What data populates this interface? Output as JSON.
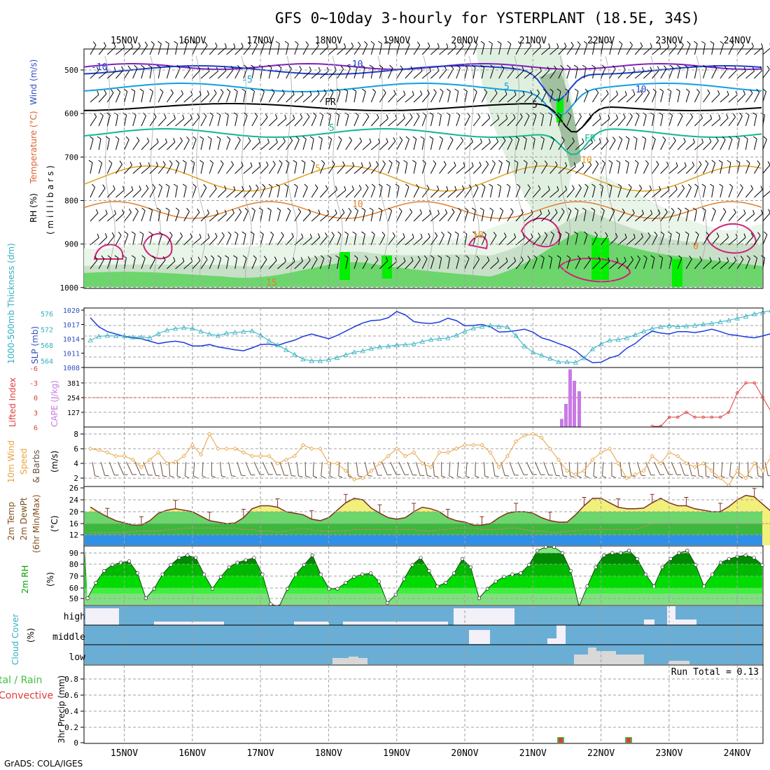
{
  "title": "GFS 0~10day 3-hourly for YSTERPLANT (18.5E, 34S)",
  "footer": "GrADS: COLA/IGES",
  "dates": [
    "15NOV",
    "16NOV",
    "17NOV",
    "18NOV",
    "19NOV",
    "20NOV",
    "21NOV",
    "22NOV",
    "23NOV",
    "24NOV"
  ],
  "colors": {
    "grid": "#a0a0a0",
    "wind_blue": "#1e3cdc",
    "cape": "#c87ae6",
    "li": "#e03c3c",
    "wind10": "#e8a040",
    "barb": "#6a5040",
    "rh_light": "#a8f080",
    "rh_mid": "#3cd23c",
    "rh_dark": "#00a000",
    "cloud": "#6aaed6",
    "temp_yellow": "#f0f07a",
    "dew_blue": "#3090e8"
  },
  "panels": {
    "upper": {
      "label_rh": "RH (%)",
      "label_temp": "Temperature (°C)",
      "label_wind": "Wind (m/s)",
      "label_mb": "( m i l l i b a r s )",
      "yticks": [
        "500",
        "600",
        "700",
        "800",
        "900",
        "1000"
      ],
      "contour_labels": [
        "-10",
        "-10",
        "-5",
        "5",
        "-10",
        "5",
        "FR",
        "FR",
        "5",
        "5",
        "10",
        "10",
        "10",
        "15",
        "0",
        "-5",
        "15",
        "0",
        "10",
        "10",
        "50",
        "50",
        "10",
        "50",
        "10",
        "10",
        "50",
        "50",
        "10",
        "10"
      ]
    },
    "slp": {
      "label_thk": "1000-500mb Thickness (dm)",
      "label_slp": "SLP (mb)",
      "left_ticks": [
        "576",
        "572",
        "568",
        "564"
      ],
      "right_ticks": [
        "1020",
        "1017",
        "1014",
        "1011",
        "1008"
      ]
    },
    "cape": {
      "label_li": "Lifted Index",
      "label_cape": "CAPE (J/kg)",
      "left_ticks": [
        "-6",
        "-3",
        "0",
        "3",
        "6"
      ],
      "right_ticks": [
        "381",
        "254",
        "127"
      ]
    },
    "wind10": {
      "label_a": "10m Wind",
      "label_b": "Speed",
      "label_c": "& Barbs",
      "label_unit": "(m/s)",
      "yticks": [
        "8",
        "6",
        "4",
        "2"
      ]
    },
    "temp2m": {
      "label_a": "2m Temp",
      "label_b": "2m DewPt",
      "label_c": "(6hr Min/Max)",
      "label_unit": "(°C)",
      "yticks": [
        "26",
        "24",
        "20",
        "16",
        "12"
      ]
    },
    "rh2m": {
      "label": "2m RH",
      "label_unit": "(%)",
      "yticks": [
        "90",
        "80",
        "70",
        "60",
        "50"
      ]
    },
    "cloud": {
      "label": "Cloud Cover",
      "label_unit": "(%)",
      "levels": [
        "high",
        "middle",
        "low"
      ]
    },
    "precip": {
      "label_a": "tal / Rain",
      "label_b": "Convective",
      "label_axis": "3hr Precip (mm)",
      "yticks": [
        "0.8",
        "0.6",
        "0.4",
        "0.2",
        "0"
      ],
      "run_total": "Run Total = 0.13"
    }
  },
  "chart_data": [
    {
      "type": "line",
      "title": "SLP (mb) / 1000-500mb Thickness (dm)",
      "x_start": "14NOV 12Z",
      "x_step_hours": 3,
      "series": [
        {
          "name": "SLP (mb)",
          "values": [
            1018.4,
            1016.5,
            1015.5,
            1015,
            1014.5,
            1014.2,
            1014,
            1013.5,
            1013,
            1013.3,
            1013.5,
            1013.2,
            1012.5,
            1012.5,
            1012.8,
            1012.3,
            1012,
            1011.7,
            1011.5,
            1012.1,
            1012.8,
            1012.9,
            1012.6,
            1013.2,
            1013.7,
            1014.5,
            1015,
            1014.5,
            1014,
            1014.7,
            1015.6,
            1016.5,
            1017.3,
            1017.8,
            1017.9,
            1018.4,
            1019.7,
            1019,
            1017.6,
            1017.3,
            1017.2,
            1017.5,
            1018.3,
            1017.8,
            1016.7,
            1016.8,
            1017,
            1016.5,
            1015.4,
            1015.5,
            1015.7,
            1016,
            1015.4,
            1014.2,
            1013.7,
            1013,
            1012.4,
            1011.5,
            1010,
            1009,
            1009.1,
            1010,
            1010.5,
            1012,
            1013,
            1014.5,
            1015.6,
            1015.2,
            1015,
            1015.5,
            1015.5,
            1015.3,
            1015.6,
            1016,
            1015.5,
            1014.9,
            1014.7,
            1014.4,
            1014.2,
            1014.6,
            1015.1,
            1014.8,
            1014.2,
            1013.4,
            1012.7,
            1011.6,
            1012.8
          ]
        },
        {
          "name": "1000-500mb Thickness (dm)",
          "values": [
            569.2,
            570.2,
            570.4,
            570.3,
            570.3,
            570,
            570,
            569.8,
            570.9,
            571.8,
            572.2,
            572.4,
            572.2,
            571.5,
            570.8,
            570.4,
            571,
            571.2,
            571.4,
            571.6,
            570.5,
            569.1,
            568,
            566.8,
            565.6,
            564.4,
            564,
            564,
            564.3,
            564.8,
            565.5,
            566.2,
            566.5,
            567.1,
            567.5,
            567.7,
            568,
            568.1,
            568.3,
            568.9,
            569.4,
            569.6,
            569.8,
            570.5,
            571.5,
            572.3,
            572.7,
            573,
            572.7,
            572.6,
            570.4,
            567.7,
            566.2,
            565.4,
            564.6,
            563.7,
            563.7,
            563.6,
            564.7,
            567,
            568.3,
            569.2,
            569.4,
            569.8,
            570.6,
            571.5,
            572.2,
            572.6,
            572.9,
            572.7,
            572.8,
            573,
            573.3,
            573.5,
            573.9,
            574.3,
            574.8,
            575.3,
            575.9,
            576.4,
            576.8,
            576.6,
            576.1,
            575.6,
            575.2,
            575.4,
            576.2
          ]
        }
      ],
      "xlabel": "",
      "ylabel": "SLP (mb)",
      "ylim": [
        1008,
        1020
      ],
      "ylim_right": [
        563,
        577
      ]
    },
    {
      "type": "bar",
      "title": "CAPE (J/kg) / Lifted Index",
      "series": [
        {
          "name": "CAPE (J/kg)",
          "points": [
            [
              "21NOV 09Z",
              70
            ],
            [
              "21NOV 12Z",
              200
            ],
            [
              "21NOV 15Z",
              500
            ],
            [
              "21NOV 18Z",
              400
            ],
            [
              "21NOV 21Z",
              310
            ]
          ]
        },
        {
          "name": "Lifted Index",
          "values": [
            7,
            7,
            7,
            7,
            7,
            7,
            7,
            7,
            7,
            7,
            7,
            7,
            7,
            7,
            7,
            7,
            7,
            7,
            7,
            7,
            7,
            7,
            7,
            7,
            7,
            7,
            7,
            7,
            7,
            7,
            7,
            7,
            7,
            7,
            7,
            7,
            7,
            7,
            7,
            7,
            7,
            7,
            7,
            7,
            7,
            7,
            7,
            7,
            7,
            7,
            7,
            7,
            7,
            7,
            7,
            7,
            7,
            7,
            7,
            7,
            7,
            7,
            7,
            7,
            7,
            7,
            7,
            7,
            4,
            4,
            3,
            4,
            4,
            4,
            4,
            3,
            -1,
            -3,
            -3,
            0,
            3,
            5,
            6,
            6,
            6,
            6,
            6,
            4,
            5,
            6,
            4,
            5,
            6,
            7,
            7,
            7,
            7,
            7,
            7,
            7
          ]
        }
      ],
      "ylim": [
        6,
        -6
      ],
      "ylim_right": [
        0,
        508
      ]
    },
    {
      "type": "line",
      "title": "10m Wind Speed & Barbs (m/s)",
      "x_start": "14NOV 12Z",
      "x_step_hours": 3,
      "series": [
        {
          "name": "Wind Speed (m/s)",
          "values": [
            6,
            5.8,
            5.5,
            5,
            5,
            4.5,
            3.5,
            4.5,
            5.5,
            4,
            4.2,
            5,
            6.5,
            5.2,
            8,
            6,
            6,
            6,
            5.5,
            5,
            5,
            5,
            4,
            4.5,
            5,
            6.5,
            6,
            6,
            4,
            4,
            3,
            1.8,
            2,
            3,
            4,
            5,
            6,
            5,
            5.5,
            4,
            3.5,
            5.5,
            5.5,
            6,
            6.5,
            6.5,
            6.5,
            5.5,
            3.5,
            5,
            7,
            7.8,
            8,
            7.5,
            6,
            4.5,
            3,
            2.5,
            3,
            4.5,
            5.5,
            6,
            4,
            2,
            2.5,
            3,
            5,
            4,
            5.5,
            5,
            4,
            3.5,
            4,
            3,
            2,
            1,
            3,
            2,
            4,
            3,
            5,
            4,
            5,
            3,
            3,
            4,
            5,
            5,
            4,
            3,
            2,
            3,
            2.5,
            3
          ]
        }
      ],
      "ylim": [
        0,
        9
      ]
    },
    {
      "type": "area",
      "title": "2m Temp / 2m DewPt (°C)",
      "x_start": "14NOV 12Z",
      "x_step_hours": 3,
      "series": [
        {
          "name": "2m Temp",
          "values": [
            21.6,
            19.8,
            18.3,
            17,
            16.2,
            15.5,
            15.5,
            17,
            19.5,
            20.5,
            21,
            20.5,
            20,
            18.5,
            17,
            16.5,
            16,
            16.2,
            18,
            21,
            22,
            22,
            21.5,
            20,
            19.5,
            19,
            17.5,
            17,
            18,
            20.5,
            23,
            24.5,
            24,
            21.2,
            19.5,
            18,
            17.5,
            18,
            20,
            21.5,
            21,
            20,
            18,
            17,
            16.5,
            15.5,
            15.5,
            16,
            18,
            19.5,
            20,
            20,
            19.5,
            18,
            17,
            16.5,
            16.5,
            19,
            22,
            24.5,
            24.5,
            23,
            21.5,
            21,
            21,
            21.2,
            23,
            24.5,
            23,
            22,
            22,
            21,
            20.5,
            20,
            20,
            21.7,
            24,
            25.5,
            25,
            22.5,
            20,
            19.5,
            19.5,
            21,
            22.8,
            24,
            24.5,
            23,
            22,
            19,
            18,
            17.5,
            18,
            20.5
          ]
        },
        {
          "name": "2m DewPt",
          "values": [
            13,
            13,
            13,
            13,
            13,
            13.3,
            13.5,
            13.5,
            13.5,
            14,
            14,
            14.5,
            14.5,
            14.5,
            14.5,
            14.5,
            14.5,
            14.5,
            14,
            14,
            13.5,
            13.5,
            13,
            13.5,
            14,
            14.5,
            14,
            13.5,
            13.5,
            13.5,
            13.5,
            14,
            14,
            14,
            14,
            14,
            14,
            14,
            14,
            13.5,
            13.5,
            14,
            14,
            14.5,
            14.5,
            14.5,
            14,
            14,
            14,
            14.5,
            14.5,
            14,
            13.5,
            13.5,
            13,
            13,
            13.5,
            13.5,
            14,
            14,
            14,
            14,
            14,
            14,
            14,
            15,
            16,
            16,
            16,
            16,
            16,
            16,
            16,
            16,
            16,
            16,
            16,
            16,
            16,
            16,
            16,
            16,
            16,
            16,
            16,
            16,
            16,
            16,
            16,
            16,
            16,
            16,
            16,
            16,
            16,
            16
          ]
        }
      ],
      "ylim": [
        10,
        26
      ]
    },
    {
      "type": "area",
      "title": "2m RH (%)",
      "x_start": "14NOV 12Z",
      "x_step_hours": 3,
      "series": [
        {
          "name": "2m RH (%)",
          "values": [
            52,
            65,
            75,
            80,
            82,
            83,
            73,
            52,
            60,
            72,
            80,
            86,
            88,
            86,
            72,
            60,
            70,
            78,
            82,
            84,
            86,
            72,
            47,
            45,
            60,
            72,
            80,
            88,
            72,
            60,
            60,
            65,
            70,
            72,
            73,
            66,
            48,
            55,
            68,
            80,
            86,
            75,
            62,
            65,
            73,
            85,
            78,
            52,
            60,
            66,
            70,
            72,
            73,
            80,
            92,
            95,
            95,
            90,
            75,
            45,
            62,
            78,
            88,
            90,
            90,
            92,
            85,
            72,
            62,
            78,
            85,
            90,
            92,
            80,
            62,
            72,
            82,
            85,
            87,
            88,
            86,
            80
          ]
        }
      ],
      "ylim": [
        40,
        95
      ]
    },
    {
      "type": "bar",
      "title": "Cloud Cover (%)",
      "series": [
        {
          "name": "high",
          "note": "segments at 15NOV, 16NOV-17NOV, 18NOV-19NOV, 20NOV-21NOV, 22NOV-23NOV"
        },
        {
          "name": "middle",
          "note": "segments near 20NOV, 21NOV-22NOV"
        },
        {
          "name": "low",
          "note": "segments 18NOV-19NOV, 21NOV 12Z - 22NOV 12Z, 23NOV"
        }
      ]
    },
    {
      "type": "bar",
      "title": "3hr Precip (mm)",
      "run_total": 0.13,
      "series": [
        {
          "name": "Total / Rain",
          "points": [
            [
              "21NOV 09Z",
              0.06
            ],
            [
              "22NOV 12Z",
              0.07
            ]
          ]
        },
        {
          "name": "Convective",
          "points": [
            [
              "21NOV 09Z",
              0.04
            ],
            [
              "22NOV 12Z",
              0.05
            ]
          ]
        }
      ],
      "ylim": [
        0,
        1
      ]
    }
  ]
}
